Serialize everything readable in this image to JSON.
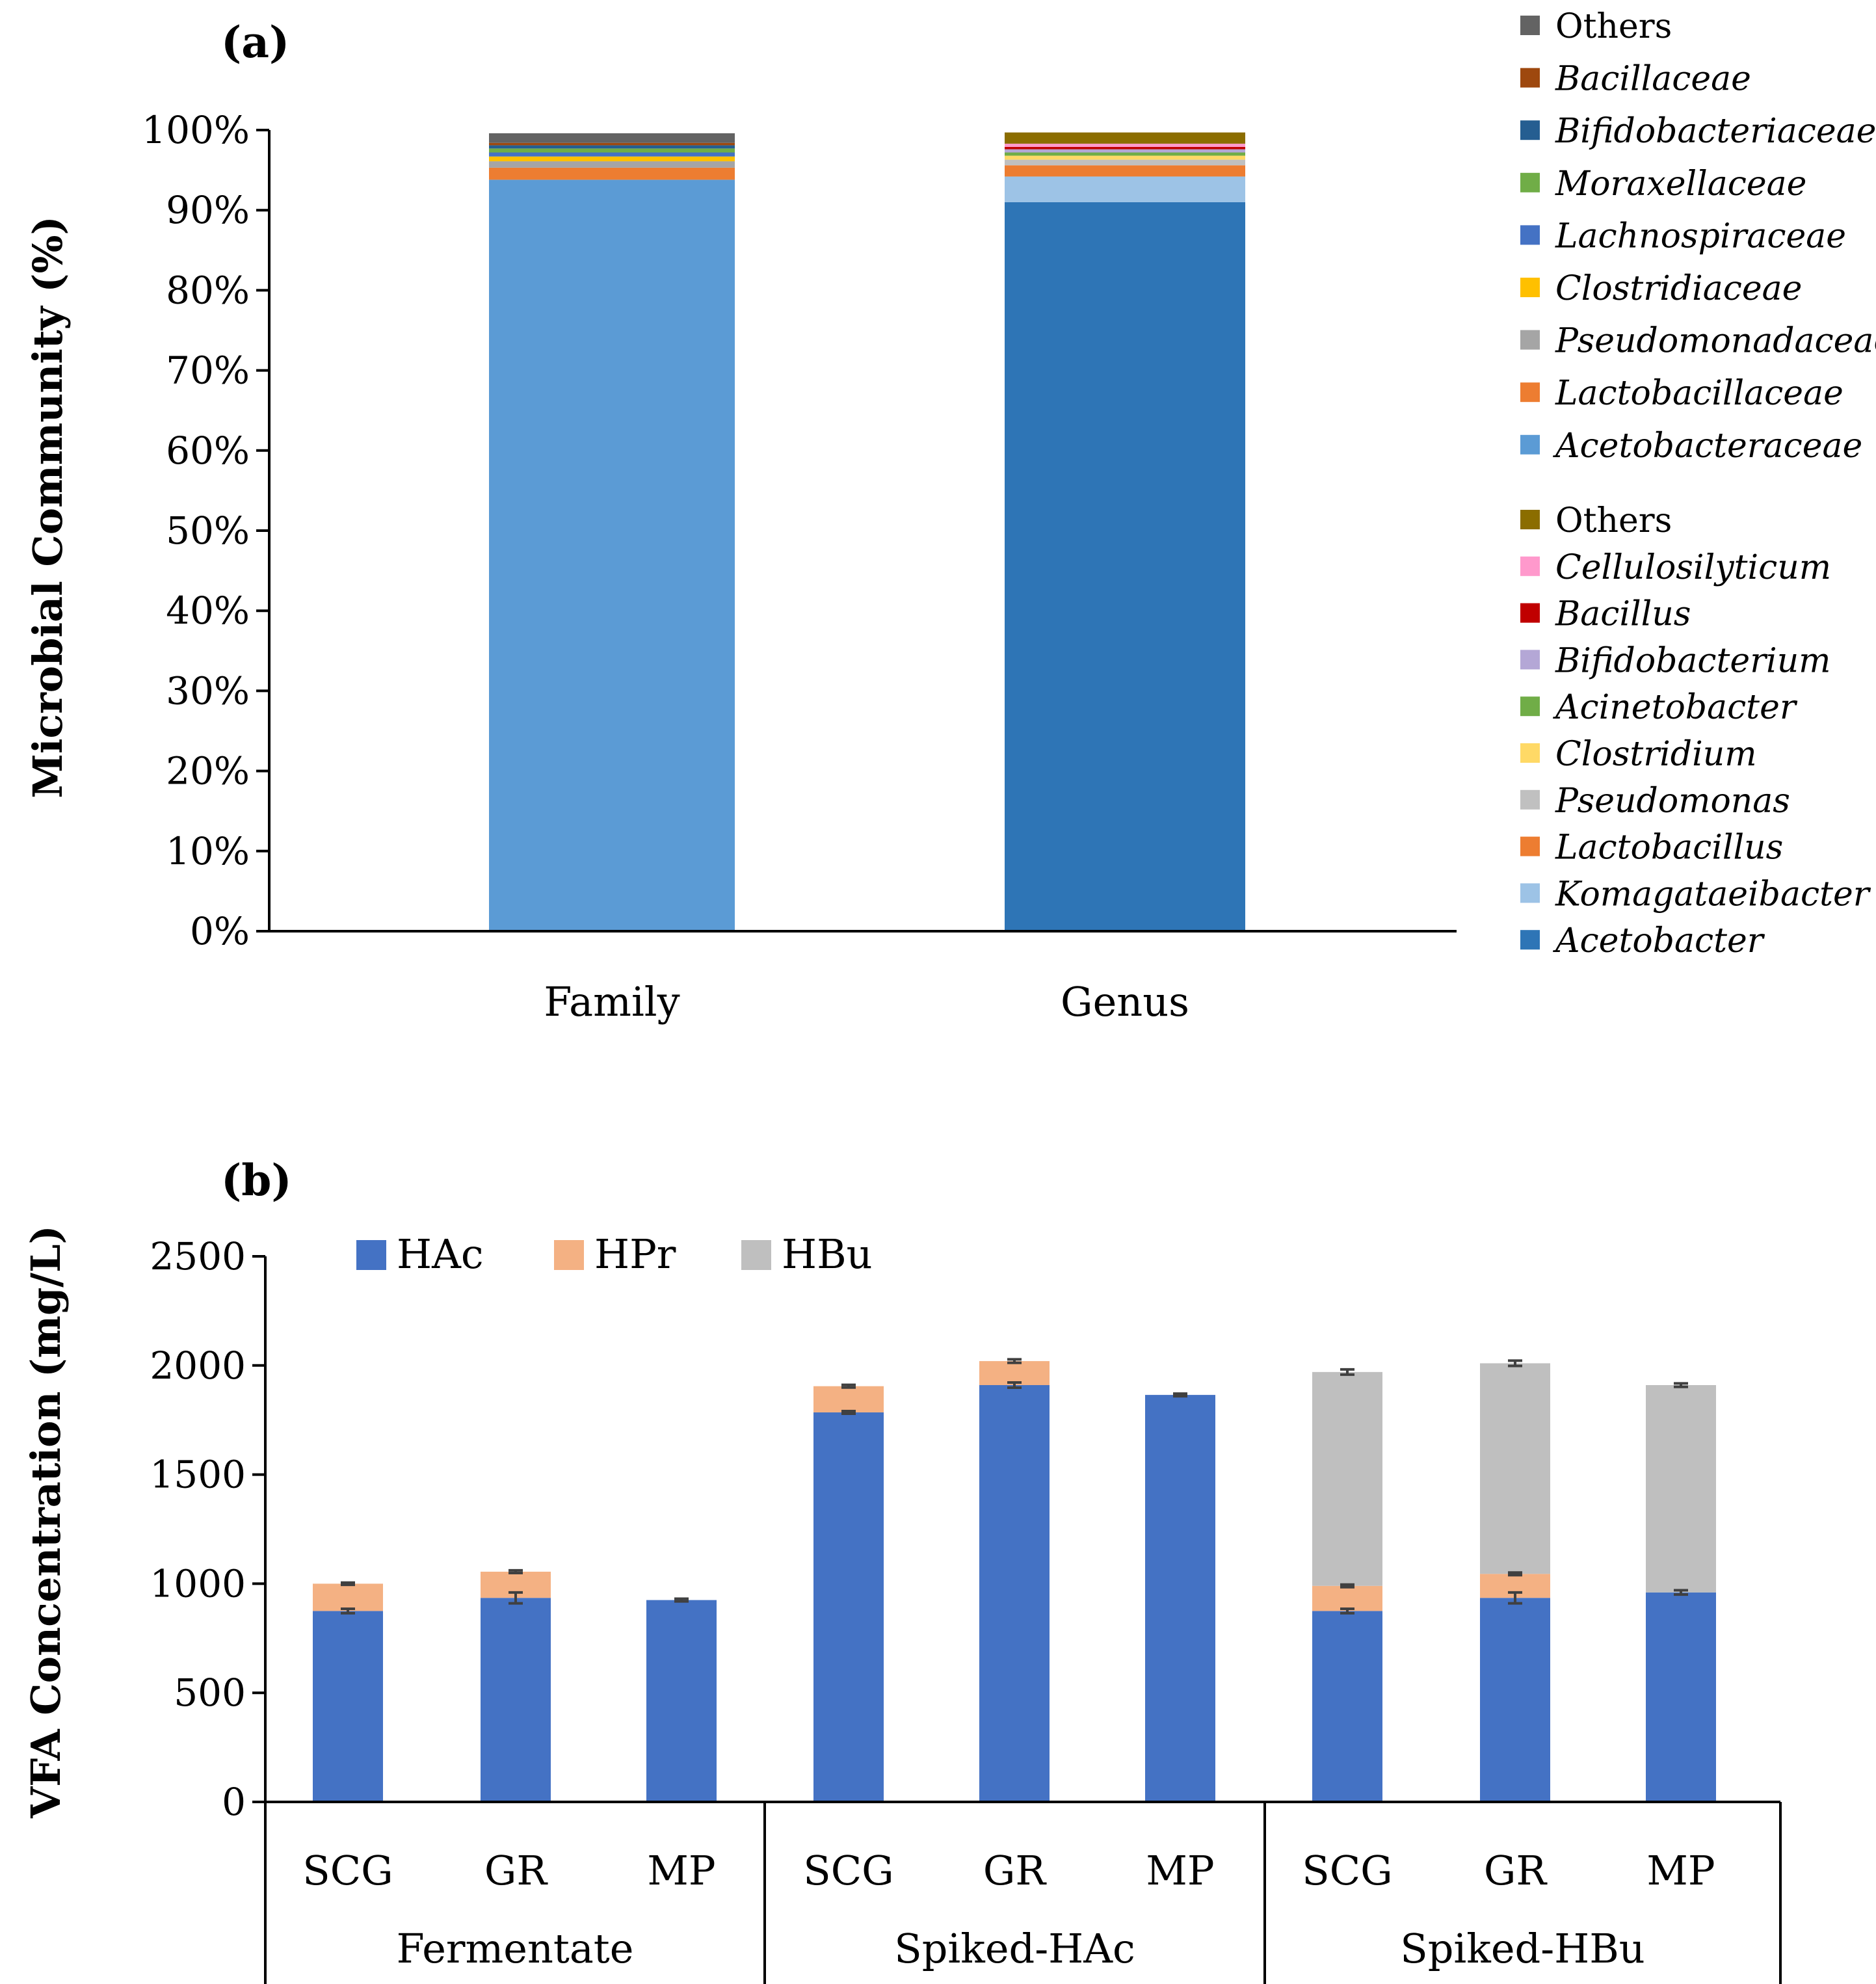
{
  "panel_a_label": "(a)",
  "panel_b_label": "(b)",
  "chart_data": [
    {
      "type": "bar",
      "stacked": true,
      "title": "",
      "xlabel": "",
      "ylabel": "Microbial Community (%)",
      "ylim": [
        0,
        100
      ],
      "yticks": [
        "0%",
        "10%",
        "20%",
        "30%",
        "40%",
        "50%",
        "60%",
        "70%",
        "80%",
        "90%",
        "100%"
      ],
      "categories": [
        "Family",
        "Genus"
      ],
      "stacks": [
        {
          "category": "Family",
          "series": [
            {
              "name": "Acetobacteraceae",
              "italic": true,
              "color": "#5b9bd5",
              "value": 93.8
            },
            {
              "name": "Lactobacillaceae",
              "italic": true,
              "color": "#ed7d31",
              "value": 1.5
            },
            {
              "name": "Pseudomonadaceae",
              "italic": true,
              "color": "#a5a5a5",
              "value": 0.8
            },
            {
              "name": "Clostridiaceae",
              "italic": true,
              "color": "#ffc000",
              "value": 0.6
            },
            {
              "name": "Lachnospiraceae",
              "italic": true,
              "color": "#4472c4",
              "value": 0.5
            },
            {
              "name": "Moraxellaceae",
              "italic": true,
              "color": "#70ad47",
              "value": 0.5
            },
            {
              "name": "Bifidobacteriaceae",
              "italic": true,
              "color": "#255e91",
              "value": 0.4
            },
            {
              "name": "Bacillaceae",
              "italic": true,
              "color": "#9e480e",
              "value": 0.3
            },
            {
              "name": "Others",
              "italic": false,
              "color": "#636363",
              "value": 1.2
            }
          ]
        },
        {
          "category": "Genus",
          "series": [
            {
              "name": "Acetobacter",
              "italic": true,
              "color": "#2e75b6",
              "value": 91.0
            },
            {
              "name": "Komagataeibacter",
              "italic": true,
              "color": "#9dc3e6",
              "value": 3.2
            },
            {
              "name": "Lactobacillus",
              "italic": true,
              "color": "#ed7d31",
              "value": 1.4
            },
            {
              "name": "Pseudomonas",
              "italic": true,
              "color": "#c0c0c0",
              "value": 0.7
            },
            {
              "name": "Clostridium",
              "italic": true,
              "color": "#ffd966",
              "value": 0.5
            },
            {
              "name": "Acinetobacter",
              "italic": true,
              "color": "#70ad47",
              "value": 0.4
            },
            {
              "name": "Bifidobacterium",
              "italic": true,
              "color": "#b4a7d6",
              "value": 0.4
            },
            {
              "name": "Bacillus",
              "italic": true,
              "color": "#c00000",
              "value": 0.3
            },
            {
              "name": "Cellulosilyticum",
              "italic": true,
              "color": "#ff99cc",
              "value": 0.4
            },
            {
              "name": "Others",
              "italic": false,
              "color": "#8b6d00",
              "value": 1.4
            }
          ]
        }
      ],
      "legend_family": [
        {
          "name": "Others",
          "italic": false,
          "color": "#636363"
        },
        {
          "name": "Bacillaceae",
          "italic": true,
          "color": "#9e480e"
        },
        {
          "name": "Bifidobacteriaceae",
          "italic": true,
          "color": "#255e91"
        },
        {
          "name": "Moraxellaceae",
          "italic": true,
          "color": "#70ad47"
        },
        {
          "name": "Lachnospiraceae",
          "italic": true,
          "color": "#4472c4"
        },
        {
          "name": "Clostridiaceae",
          "italic": true,
          "color": "#ffc000"
        },
        {
          "name": "Pseudomonadaceae",
          "italic": true,
          "color": "#a5a5a5"
        },
        {
          "name": "Lactobacillaceae",
          "italic": true,
          "color": "#ed7d31"
        },
        {
          "name": "Acetobacteraceae",
          "italic": true,
          "color": "#5b9bd5"
        }
      ],
      "legend_genus": [
        {
          "name": "Others",
          "italic": false,
          "color": "#8b6d00"
        },
        {
          "name": "Cellulosilyticum",
          "italic": true,
          "color": "#ff99cc"
        },
        {
          "name": "Bacillus",
          "italic": true,
          "color": "#c00000"
        },
        {
          "name": "Bifidobacterium",
          "italic": true,
          "color": "#b4a7d6"
        },
        {
          "name": "Acinetobacter",
          "italic": true,
          "color": "#70ad47"
        },
        {
          "name": "Clostridium",
          "italic": true,
          "color": "#ffd966"
        },
        {
          "name": "Pseudomonas",
          "italic": true,
          "color": "#c0c0c0"
        },
        {
          "name": "Lactobacillus",
          "italic": true,
          "color": "#ed7d31"
        },
        {
          "name": "Komagataeibacter",
          "italic": true,
          "color": "#9dc3e6"
        },
        {
          "name": "Acetobacter",
          "italic": true,
          "color": "#2e75b6"
        }
      ]
    },
    {
      "type": "bar",
      "stacked": true,
      "title": "",
      "xlabel": "",
      "ylabel": "VFA Concentration (mg/L)",
      "ylim": [
        0,
        2500
      ],
      "yticks": [
        "0",
        "500",
        "1000",
        "1500",
        "2000",
        "2500"
      ],
      "legend_position": "top-left",
      "series": [
        {
          "name": "HAc",
          "color": "#4472c4"
        },
        {
          "name": "HPr",
          "color": "#f4b183"
        },
        {
          "name": "HBu",
          "color": "#bfbfbf"
        }
      ],
      "groups": [
        {
          "name": "Fermentate",
          "categories": [
            "SCG",
            "GR",
            "MP"
          ]
        },
        {
          "name": "Spiked-HAc",
          "categories": [
            "SCG",
            "GR",
            "MP"
          ]
        },
        {
          "name": "Spiked-HBu",
          "categories": [
            "SCG",
            "GR",
            "MP"
          ]
        }
      ],
      "bars": [
        {
          "HAc": 875,
          "HPr": 125,
          "HBu": 0,
          "err_HAc": 10,
          "err_HPr": 5,
          "err_HBu": 0
        },
        {
          "HAc": 935,
          "HPr": 120,
          "HBu": 0,
          "err_HAc": 25,
          "err_HPr": 6,
          "err_HBu": 0
        },
        {
          "HAc": 925,
          "HPr": 0,
          "HBu": 0,
          "err_HAc": 6,
          "err_HPr": 0,
          "err_HBu": 0
        },
        {
          "HAc": 1785,
          "HPr": 120,
          "HBu": 0,
          "err_HAc": 6,
          "err_HPr": 6,
          "err_HBu": 0
        },
        {
          "HAc": 1910,
          "HPr": 110,
          "HBu": 0,
          "err_HAc": 12,
          "err_HPr": 8,
          "err_HBu": 0
        },
        {
          "HAc": 1865,
          "HPr": 0,
          "HBu": 0,
          "err_HAc": 6,
          "err_HPr": 0,
          "err_HBu": 0
        },
        {
          "HAc": 875,
          "HPr": 115,
          "HBu": 980,
          "err_HAc": 10,
          "err_HPr": 6,
          "err_HBu": 12
        },
        {
          "HAc": 935,
          "HPr": 110,
          "HBu": 965,
          "err_HAc": 25,
          "err_HPr": 6,
          "err_HBu": 12
        },
        {
          "HAc": 960,
          "HPr": 0,
          "HBu": 950,
          "err_HAc": 10,
          "err_HPr": 0,
          "err_HBu": 8
        }
      ]
    }
  ]
}
